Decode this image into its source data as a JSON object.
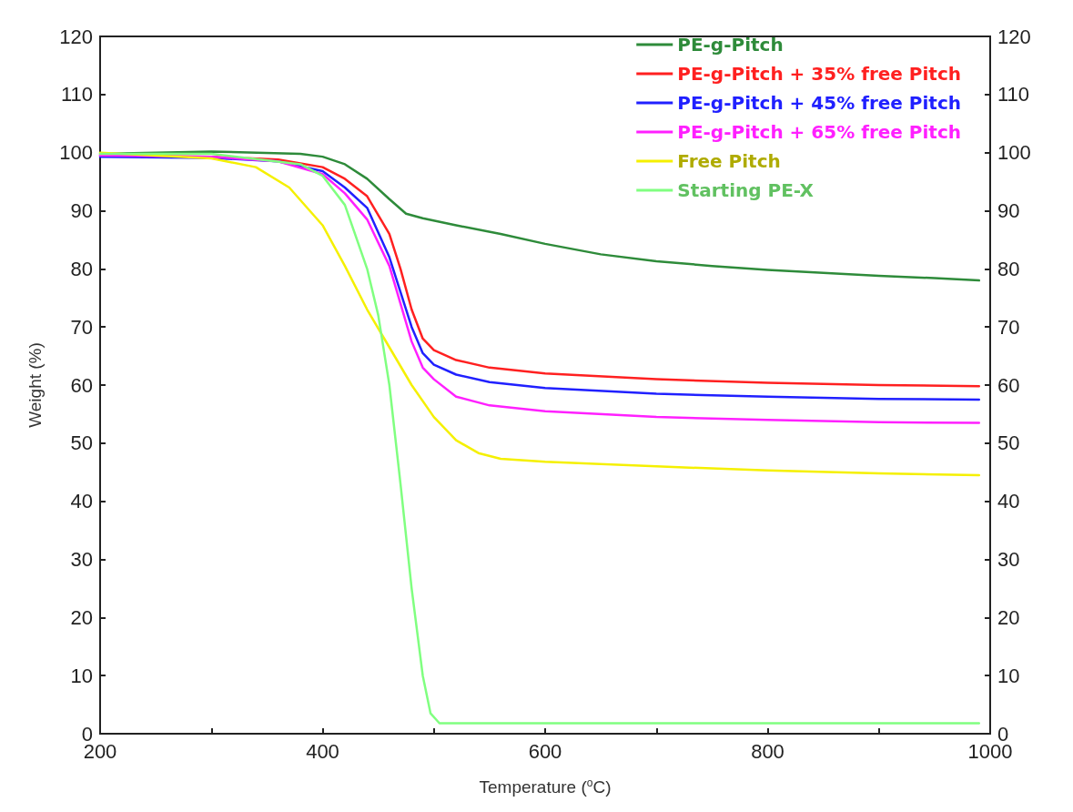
{
  "chart_data": {
    "type": "line",
    "xlabel": "Temperature ($^{o}$C)",
    "ylabel": "Weight (%)",
    "xlim": [
      200,
      1000
    ],
    "xticks": [
      200,
      {
        "value": 300,
        "label": null
      },
      400,
      {
        "value": 500,
        "label": null
      },
      600,
      {
        "value": 700,
        "label": null
      },
      800,
      {
        "value": 900,
        "label": null
      },
      1000
    ],
    "ylim": [
      0,
      120
    ],
    "yticks": [
      0,
      10,
      20,
      30,
      40,
      50,
      60,
      70,
      80,
      90,
      100,
      110,
      120
    ],
    "y2lim": [
      0,
      120
    ],
    "y2ticks": [
      0,
      10,
      20,
      30,
      40,
      50,
      60,
      70,
      80,
      90,
      100,
      110,
      120
    ],
    "grid": false,
    "legend": "top right",
    "marker": "none",
    "line_style": "solid",
    "series": [
      {
        "name": "PE-g-Pitch",
        "color": "#2e8b3a",
        "x": [
          200,
          300,
          380,
          400,
          420,
          440,
          460,
          475,
          490,
          520,
          560,
          600,
          650,
          700,
          750,
          800,
          850,
          900,
          950,
          990
        ],
        "values": [
          99.8,
          100.2,
          99.8,
          99.3,
          98,
          95.5,
          92,
          89.5,
          88.7,
          87.5,
          86,
          84.3,
          82.5,
          81.3,
          80.5,
          79.8,
          79.3,
          78.8,
          78.4,
          78
        ]
      },
      {
        "name": "PE-g-Pitch + 35% free Pitch",
        "color": "#ff2020",
        "x": [
          200,
          300,
          360,
          400,
          420,
          440,
          460,
          470,
          480,
          490,
          500,
          520,
          550,
          600,
          700,
          800,
          900,
          990
        ],
        "values": [
          99.5,
          99.3,
          98.8,
          97.5,
          95.5,
          92.5,
          86,
          80,
          73,
          68,
          66,
          64.3,
          63,
          62,
          61,
          60.4,
          60,
          59.8
        ]
      },
      {
        "name": "PE-g-Pitch + 45% free Pitch",
        "color": "#2020ff",
        "x": [
          200,
          300,
          360,
          400,
          420,
          440,
          460,
          470,
          480,
          490,
          500,
          520,
          550,
          600,
          700,
          800,
          900,
          990
        ],
        "values": [
          99.3,
          99.1,
          98.5,
          96.8,
          94,
          90.5,
          82,
          76,
          70,
          65.5,
          63.5,
          61.8,
          60.5,
          59.5,
          58.5,
          58,
          57.6,
          57.5
        ]
      },
      {
        "name": "PE-g-Pitch + 65% free Pitch",
        "color": "#ff20ff",
        "x": [
          200,
          300,
          360,
          400,
          420,
          440,
          460,
          470,
          480,
          490,
          500,
          520,
          550,
          600,
          700,
          800,
          900,
          990
        ],
        "values": [
          99.5,
          99.3,
          98.5,
          96.3,
          93,
          88.5,
          80.5,
          74,
          67.5,
          63,
          61,
          58,
          56.5,
          55.5,
          54.5,
          54,
          53.6,
          53.5
        ]
      },
      {
        "name": "Free Pitch",
        "color": "#f5f000",
        "x": [
          200,
          300,
          340,
          370,
          400,
          420,
          440,
          460,
          480,
          500,
          520,
          540,
          560,
          600,
          700,
          800,
          900,
          990
        ],
        "values": [
          100,
          99,
          97.5,
          94,
          87.5,
          80.5,
          73,
          66.5,
          60,
          54.5,
          50.5,
          48.3,
          47.3,
          46.8,
          46,
          45.3,
          44.8,
          44.5
        ]
      },
      {
        "name": "Starting PE-X",
        "color": "#80ff80",
        "x": [
          200,
          300,
          380,
          400,
          420,
          440,
          450,
          460,
          470,
          480,
          490,
          497,
          505,
          600,
          800,
          990
        ],
        "values": [
          99.8,
          99.8,
          98,
          96,
          91,
          80,
          72,
          60,
          43,
          25,
          10,
          3.5,
          1.8,
          1.8,
          1.8,
          1.8
        ]
      }
    ]
  }
}
